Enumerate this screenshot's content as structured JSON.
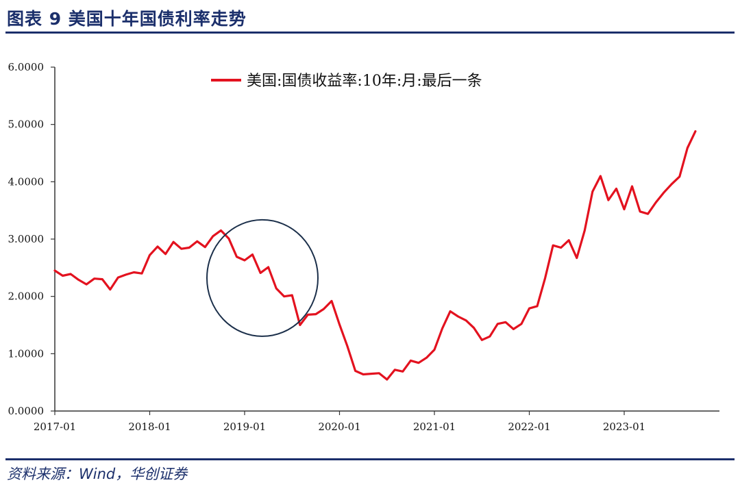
{
  "header": {
    "label": "图表 9    美国十年国债利率走势"
  },
  "source": {
    "text": "资料来源：Wind，华创证券"
  },
  "chart_data": {
    "type": "line",
    "ylim": [
      0,
      6
    ],
    "y_ticks": [
      "0.0000",
      "1.0000",
      "2.0000",
      "3.0000",
      "4.0000",
      "5.0000",
      "6.0000"
    ],
    "x_ticks": [
      "2017-01",
      "2018-01",
      "2019-01",
      "2020-01",
      "2021-01",
      "2022-01",
      "2023-01"
    ],
    "grid": false,
    "legend_position": "top-center",
    "series": [
      {
        "name": "美国:国债收益率:10年:月:最后一条",
        "color": "#e3121f",
        "x": [
          "2017-01",
          "2017-02",
          "2017-03",
          "2017-04",
          "2017-05",
          "2017-06",
          "2017-07",
          "2017-08",
          "2017-09",
          "2017-10",
          "2017-11",
          "2017-12",
          "2018-01",
          "2018-02",
          "2018-03",
          "2018-04",
          "2018-05",
          "2018-06",
          "2018-07",
          "2018-08",
          "2018-09",
          "2018-10",
          "2018-11",
          "2018-12",
          "2019-01",
          "2019-02",
          "2019-03",
          "2019-04",
          "2019-05",
          "2019-06",
          "2019-07",
          "2019-08",
          "2019-09",
          "2019-10",
          "2019-11",
          "2019-12",
          "2020-01",
          "2020-02",
          "2020-03",
          "2020-04",
          "2020-05",
          "2020-06",
          "2020-07",
          "2020-08",
          "2020-09",
          "2020-10",
          "2020-11",
          "2020-12",
          "2021-01",
          "2021-02",
          "2021-03",
          "2021-04",
          "2021-05",
          "2021-06",
          "2021-07",
          "2021-08",
          "2021-09",
          "2021-10",
          "2021-11",
          "2021-12",
          "2022-01",
          "2022-02",
          "2022-03",
          "2022-04",
          "2022-05",
          "2022-06",
          "2022-07",
          "2022-08",
          "2022-09",
          "2022-10",
          "2022-11",
          "2022-12",
          "2023-01",
          "2023-02",
          "2023-03",
          "2023-04",
          "2023-05",
          "2023-06",
          "2023-07",
          "2023-08",
          "2023-09",
          "2023-10"
        ],
        "values": [
          2.45,
          2.36,
          2.39,
          2.29,
          2.21,
          2.31,
          2.3,
          2.12,
          2.33,
          2.38,
          2.42,
          2.4,
          2.72,
          2.87,
          2.74,
          2.95,
          2.83,
          2.85,
          2.96,
          2.86,
          3.05,
          3.15,
          3.01,
          2.69,
          2.63,
          2.73,
          2.41,
          2.51,
          2.14,
          2.0,
          2.02,
          1.5,
          1.68,
          1.69,
          1.78,
          1.92,
          1.51,
          1.13,
          0.7,
          0.64,
          0.65,
          0.66,
          0.55,
          0.72,
          0.69,
          0.88,
          0.84,
          0.93,
          1.07,
          1.44,
          1.74,
          1.65,
          1.58,
          1.45,
          1.24,
          1.3,
          1.52,
          1.55,
          1.43,
          1.52,
          1.79,
          1.83,
          2.32,
          2.89,
          2.85,
          2.98,
          2.67,
          3.15,
          3.83,
          4.1,
          3.68,
          3.88,
          3.52,
          3.92,
          3.48,
          3.44,
          3.64,
          3.81,
          3.96,
          4.09,
          4.59,
          4.88
        ]
      }
    ],
    "annotations": [
      {
        "type": "circle",
        "around": "2019-01 to 2019-07"
      }
    ]
  }
}
